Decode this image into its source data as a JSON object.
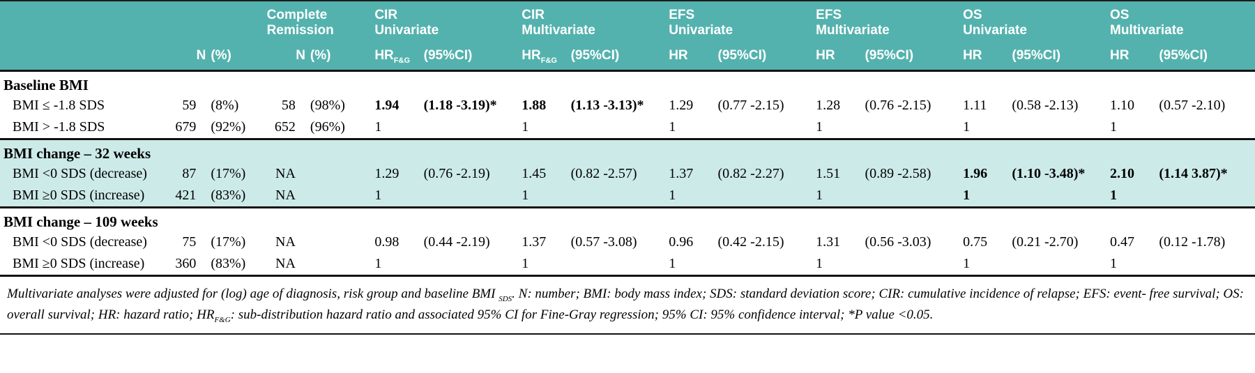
{
  "header": {
    "groups": {
      "cr": {
        "l1": "Complete",
        "l2": "Remission"
      },
      "cir_uni": {
        "l1": "CIR",
        "l2": "Univariate"
      },
      "cir_multi": {
        "l1": "CIR",
        "l2": "Multivariate"
      },
      "efs_uni": {
        "l1": "EFS",
        "l2": "Univariate"
      },
      "efs_multi": {
        "l1": "EFS",
        "l2": "Multivariate"
      },
      "os_uni": {
        "l1": "OS",
        "l2": "Univariate"
      },
      "os_multi": {
        "l1": "OS",
        "l2": "Multivariate"
      }
    },
    "sub": {
      "n": "N",
      "pct": "(%)",
      "hr": "HR",
      "hr_fg_base": "HR",
      "hr_fg_sub": "F&G",
      "ci": "(95%CI)"
    }
  },
  "colors": {
    "header_teal": "#54b2ae",
    "shaded_band": "#cceae8",
    "rule_black": "#111111"
  },
  "sections": [
    {
      "title": "Baseline BMI",
      "rows": [
        {
          "label": "BMI ≤ -1.8 SDS",
          "n": "59",
          "pct": "(8%)",
          "cr_n": "58",
          "cr_pct": "(98%)",
          "cir_uni_hr": "1.94",
          "cir_uni_ci": "(1.18 -3.19)*",
          "cir_multi_hr": "1.88",
          "cir_multi_ci": "(1.13 -3.13)*",
          "efs_uni_hr": "1.29",
          "efs_uni_ci": "(0.77 -2.15)",
          "efs_multi_hr": "1.28",
          "efs_multi_ci": "(0.76 -2.15)",
          "os_uni_hr": "1.11",
          "os_uni_ci": "(0.58 -2.13)",
          "os_multi_hr": "1.10",
          "os_multi_ci": "(0.57 -2.10)"
        },
        {
          "label": "BMI > -1.8 SDS",
          "n": "679",
          "pct": "(92%)",
          "cr_n": "652",
          "cr_pct": "(96%)",
          "cir_uni_hr": "1",
          "cir_uni_ci": "",
          "cir_multi_hr": "1",
          "cir_multi_ci": "",
          "efs_uni_hr": "1",
          "efs_uni_ci": "",
          "efs_multi_hr": "1",
          "efs_multi_ci": "",
          "os_uni_hr": "1",
          "os_uni_ci": "",
          "os_multi_hr": "1",
          "os_multi_ci": ""
        }
      ]
    },
    {
      "title": "BMI change – 32 weeks",
      "rows": [
        {
          "label": "BMI <0 SDS (decrease)",
          "n": "87",
          "pct": "(17%)",
          "cr_n": "NA",
          "cr_pct": "",
          "cir_uni_hr": "1.29",
          "cir_uni_ci": "(0.76 -2.19)",
          "cir_multi_hr": "1.45",
          "cir_multi_ci": "(0.82 -2.57)",
          "efs_uni_hr": "1.37",
          "efs_uni_ci": "(0.82 -2.27)",
          "efs_multi_hr": "1.51",
          "efs_multi_ci": "(0.89 -2.58)",
          "os_uni_hr": "1.96",
          "os_uni_ci": "(1.10 -3.48)*",
          "os_multi_hr": "2.10",
          "os_multi_ci": "(1.14 3.87)*"
        },
        {
          "label": "BMI ≥0 SDS (increase)",
          "n": "421",
          "pct": "(83%)",
          "cr_n": "NA",
          "cr_pct": "",
          "cir_uni_hr": "1",
          "cir_uni_ci": "",
          "cir_multi_hr": "1",
          "cir_multi_ci": "",
          "efs_uni_hr": "1",
          "efs_uni_ci": "",
          "efs_multi_hr": "1",
          "efs_multi_ci": "",
          "os_uni_hr": "1",
          "os_uni_ci": "",
          "os_multi_hr": "1",
          "os_multi_ci": ""
        }
      ]
    },
    {
      "title": "BMI change – 109 weeks",
      "rows": [
        {
          "label": "BMI <0 SDS (decrease)",
          "n": "75",
          "pct": "(17%)",
          "cr_n": "NA",
          "cr_pct": "",
          "cir_uni_hr": "0.98",
          "cir_uni_ci": "(0.44 -2.19)",
          "cir_multi_hr": "1.37",
          "cir_multi_ci": "(0.57 -3.08)",
          "efs_uni_hr": "0.96",
          "efs_uni_ci": "(0.42 -2.15)",
          "efs_multi_hr": "1.31",
          "efs_multi_ci": "(0.56 -3.03)",
          "os_uni_hr": "0.75",
          "os_uni_ci": "(0.21 -2.70)",
          "os_multi_hr": "0.47",
          "os_multi_ci": "(0.12 -1.78)"
        },
        {
          "label": "BMI ≥0 SDS (increase)",
          "n": "360",
          "pct": "(83%)",
          "cr_n": "NA",
          "cr_pct": "",
          "cir_uni_hr": "1",
          "cir_uni_ci": "",
          "cir_multi_hr": "1",
          "cir_multi_ci": "",
          "efs_uni_hr": "1",
          "efs_uni_ci": "",
          "efs_multi_hr": "1",
          "efs_multi_ci": "",
          "os_uni_hr": "1",
          "os_uni_ci": "",
          "os_multi_hr": "1",
          "os_multi_ci": ""
        }
      ]
    }
  ],
  "footnote": {
    "part1": "Multivariate analyses were adjusted for (log) age of diagnosis, risk group and baseline BMI ",
    "sub1": "SDS",
    "part2": ". N: number; BMI: body mass index; SDS: standard deviation score; CIR: cumulative incidence of relapse; EFS: event- free survival; OS: overall survival; HR: hazard ratio; HR",
    "sub2": "F&G",
    "part3": ": sub-distribution hazard ratio and associated 95% CI for Fine-Gray regression; 95% CI: 95% confidence interval; *P value <0.05."
  }
}
